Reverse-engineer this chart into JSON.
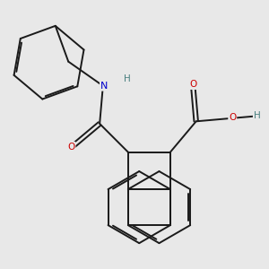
{
  "bg_color": "#e8e8e8",
  "bond_color": "#1a1a1a",
  "bond_width": 1.4,
  "atom_colors": {
    "O": "#cc0000",
    "N": "#0000cc",
    "H": "#4a8080",
    "C": "#1a1a1a"
  },
  "figsize": [
    3.0,
    3.0
  ],
  "dpi": 100
}
